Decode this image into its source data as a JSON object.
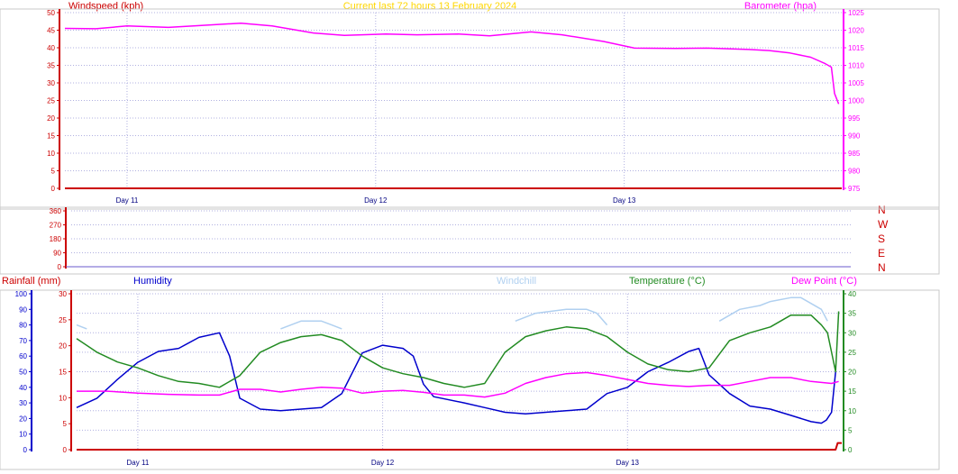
{
  "header": {
    "windspeed_label": "Windspeed (kph)",
    "title": "Current last 72 hours 13 February 2024",
    "barometer_label": "Barometer (hpa)"
  },
  "bottom_header": {
    "rainfall_label": "Rainfall (mm)",
    "humidity_label": "Humidity",
    "windchill_label": "Windchill",
    "temperature_label": "Temperature (°C)",
    "dewpoint_label": "Dew Point (°C)"
  },
  "directions": [
    "N",
    "W",
    "S",
    "E",
    "N"
  ],
  "colors": {
    "windspeed": "#cc0000",
    "title": "#ffd700",
    "barometer": "#ff00ff",
    "rainfall": "#cc0000",
    "humidity": "#0000cc",
    "windchill": "#b0d0f0",
    "temperature": "#228b22",
    "dewpoint": "#ff00ff",
    "axis": "#6a5acd",
    "grid": "#b0b0e0"
  },
  "chart_data": [
    {
      "type": "line",
      "title": "Current last 72 hours 13 February 2024",
      "x_range_hours": [
        0,
        75
      ],
      "x_ticks": [
        {
          "label": "Day 11",
          "hour": 6
        },
        {
          "label": "Day 12",
          "hour": 30
        },
        {
          "label": "Day 13",
          "hour": 54
        }
      ],
      "left_axis": {
        "label": "Windspeed (kph)",
        "ticks": [
          0,
          5,
          10,
          15,
          20,
          25,
          30,
          35,
          40,
          45,
          50
        ],
        "ylim": [
          0,
          50
        ]
      },
      "right_axis": {
        "label": "Barometer (hpa)",
        "ticks": [
          975,
          980,
          985,
          990,
          995,
          1000,
          1005,
          1010,
          1015,
          1020,
          1025
        ],
        "ylim": [
          975,
          1025
        ]
      },
      "series": [
        {
          "name": "Windspeed (kph)",
          "axis": "left",
          "color": "#cc0000",
          "x": [
            0,
            75
          ],
          "y": [
            0,
            0
          ]
        },
        {
          "name": "Barometer (hpa)",
          "axis": "right",
          "color": "#ff00ff",
          "x": [
            0,
            3,
            6,
            10,
            13,
            17,
            20,
            24,
            27,
            31,
            34,
            38,
            41,
            45,
            48,
            52,
            55,
            59,
            62,
            66,
            68,
            70,
            72,
            73.4,
            74,
            74.3,
            74.7
          ],
          "y": [
            1020.5,
            1020.4,
            1021.2,
            1020.8,
            1021.3,
            1022,
            1021.2,
            1019.2,
            1018.5,
            1018.9,
            1018.7,
            1018.9,
            1018.4,
            1019.5,
            1018.7,
            1016.8,
            1014.9,
            1014.8,
            1014.9,
            1014.5,
            1014.2,
            1013.5,
            1012.3,
            1010.5,
            1009.5,
            1002,
            999
          ]
        }
      ]
    },
    {
      "type": "line",
      "title": "",
      "x_range_hours": [
        0,
        75
      ],
      "y_ticks": [
        0,
        90,
        180,
        270,
        360
      ],
      "ylim": [
        0,
        360
      ],
      "series": []
    },
    {
      "type": "line",
      "title": "",
      "x_range_hours": [
        0,
        75
      ],
      "x_ticks": [
        {
          "label": "Day 11",
          "hour": 6
        },
        {
          "label": "Day 12",
          "hour": 30
        },
        {
          "label": "Day 13",
          "hour": 54
        }
      ],
      "left_outer_axis": {
        "label": "Rainfall (mm)",
        "ticks": [
          0,
          10,
          20,
          30,
          40,
          50,
          60,
          70,
          80,
          90,
          100
        ],
        "ylim": [
          0,
          100
        ]
      },
      "left_inner_axis": {
        "ticks": [
          0,
          5,
          10,
          15,
          20,
          25,
          30
        ],
        "ylim": [
          0,
          30
        ]
      },
      "right_axis": {
        "ticks": [
          0,
          5,
          10,
          15,
          20,
          25,
          30,
          35,
          40
        ],
        "ylim": [
          0,
          40
        ]
      },
      "series": [
        {
          "name": "Rainfall (mm)",
          "axis": "left_outer",
          "color": "#cc0000",
          "x": [
            0,
            74.4,
            74.6,
            75
          ],
          "y": [
            0,
            0,
            4.3,
            4.3
          ]
        },
        {
          "name": "Humidity",
          "axis": "left_outer",
          "color": "#0000cc",
          "x": [
            0,
            2,
            4,
            6,
            8,
            10,
            12,
            14,
            15,
            16,
            18,
            20,
            22,
            24,
            26,
            28,
            30,
            32,
            33,
            34,
            35,
            38,
            40,
            42,
            44,
            46,
            48,
            50,
            52,
            54,
            55,
            56,
            58,
            60,
            61,
            62,
            63,
            64,
            66,
            68,
            70,
            71,
            72,
            73,
            73.5,
            74,
            74.4
          ],
          "y": [
            27,
            33,
            45,
            56,
            63,
            65,
            72,
            75,
            60,
            33,
            26,
            25,
            26,
            27,
            36,
            62,
            67,
            65,
            60,
            42,
            34,
            30,
            27,
            24,
            23,
            24,
            25,
            26,
            36,
            40,
            45,
            50,
            56,
            63,
            65,
            48,
            42,
            36,
            28,
            26,
            22,
            20,
            18,
            17,
            19,
            24,
            50
          ]
        },
        {
          "name": "Windchill",
          "axis": "right",
          "color": "#b0d0f0",
          "x": [
            0,
            1,
            1.2,
            18,
            20,
            22,
            24,
            25,
            26,
            26.5,
            42,
            43,
            45,
            48,
            50,
            51,
            52,
            52.5,
            62,
            63,
            65,
            67,
            68,
            70,
            71,
            73,
            73.6
          ],
          "y": [
            32,
            31,
            null,
            null,
            31,
            33,
            33,
            32,
            31,
            null,
            null,
            33,
            35,
            36,
            36,
            35,
            32,
            null,
            null,
            33,
            36,
            37,
            38,
            39,
            39,
            36,
            33
          ]
        },
        {
          "name": "Temperature (°C)",
          "axis": "right",
          "color": "#228b22",
          "x": [
            0,
            2,
            4,
            6,
            8,
            10,
            12,
            14,
            16,
            18,
            20,
            22,
            24,
            26,
            28,
            30,
            32,
            34,
            36,
            38,
            40,
            42,
            44,
            46,
            48,
            50,
            52,
            54,
            56,
            58,
            60,
            62,
            64,
            66,
            68,
            70,
            72,
            73,
            73.6,
            74,
            74.4,
            74.7
          ],
          "y": [
            28.5,
            25,
            22.5,
            21,
            19,
            17.5,
            17,
            16,
            19,
            25,
            27.5,
            29,
            29.5,
            28,
            24,
            21,
            19.5,
            18.5,
            17,
            16,
            17,
            25,
            29,
            30.5,
            31.5,
            31,
            29,
            25,
            22,
            20.5,
            20,
            21,
            28,
            30,
            31.5,
            34.5,
            34.5,
            32,
            30,
            25,
            20,
            35.5
          ]
        },
        {
          "name": "Dew Point (°C)",
          "axis": "right",
          "color": "#ff00ff",
          "x": [
            0,
            3,
            6,
            9,
            12,
            14,
            16,
            18,
            20,
            22,
            24,
            26,
            28,
            30,
            32,
            34,
            36,
            38,
            40,
            42,
            44,
            46,
            48,
            50,
            52,
            54,
            56,
            58,
            60,
            62,
            64,
            66,
            68,
            70,
            72,
            74,
            74.7
          ],
          "y": [
            15,
            15,
            14.5,
            14.2,
            14,
            14,
            15.5,
            15.5,
            14.8,
            15.5,
            16,
            15.8,
            14.5,
            15,
            15.2,
            14.7,
            14,
            14,
            13.5,
            14.5,
            17,
            18.5,
            19.5,
            19.8,
            19,
            18,
            17,
            16.5,
            16.2,
            16.5,
            16.5,
            17.5,
            18.5,
            18.5,
            17.5,
            17,
            17.5
          ]
        }
      ]
    }
  ]
}
